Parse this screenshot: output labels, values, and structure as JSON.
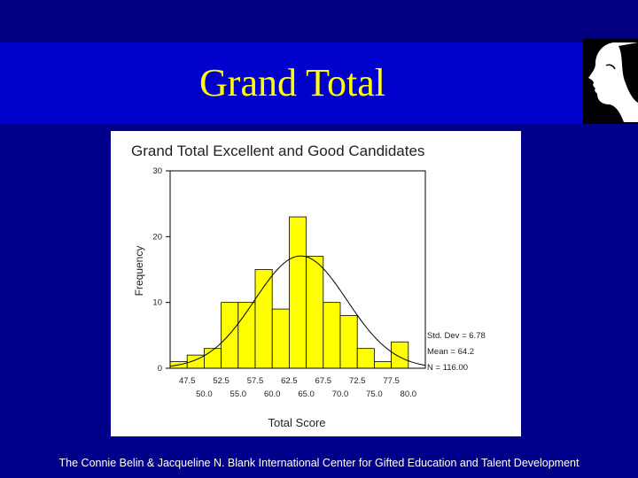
{
  "slide": {
    "title": "Grand Total",
    "footer": "The Connie Belin & Jacqueline N. Blank International Center for Gifted Education and Talent Development"
  },
  "colors": {
    "background": "#00008b",
    "title_band": "#0000cd",
    "title_text": "#ffff00",
    "bar_fill": "#ffff00"
  },
  "icons": {
    "logo": "face-profile-logo"
  },
  "chart_data": {
    "type": "bar",
    "title": "Grand Total Excellent and Good Candidates",
    "xlabel": "Total Score",
    "ylabel": "Frequency",
    "ylim": [
      0,
      30
    ],
    "yticks": [
      0,
      10,
      20,
      30
    ],
    "xlim": [
      45,
      82.5
    ],
    "bin_width": 2.5,
    "xticks_upper": [
      "47.5",
      "52.5",
      "57.5",
      "62.5",
      "67.5",
      "72.5",
      "77.5"
    ],
    "xticks_lower": [
      "50.0",
      "55.0",
      "60.0",
      "65.0",
      "70.0",
      "75.0",
      "80.0"
    ],
    "categories": [
      "47.5",
      "50.0",
      "52.5",
      "55.0",
      "57.5",
      "60.0",
      "62.5",
      "65.0",
      "67.5",
      "70.0",
      "72.5",
      "75.0",
      "77.5",
      "80.0"
    ],
    "values": [
      1,
      2,
      3,
      10,
      10,
      15,
      9,
      23,
      17,
      10,
      8,
      3,
      1,
      4
    ],
    "normal_curve": {
      "mean": 64.2,
      "std": 6.78,
      "n": 116
    },
    "stats": [
      "Std. Dev = 6.78",
      "Mean = 64.2",
      "N = 116.00"
    ]
  }
}
